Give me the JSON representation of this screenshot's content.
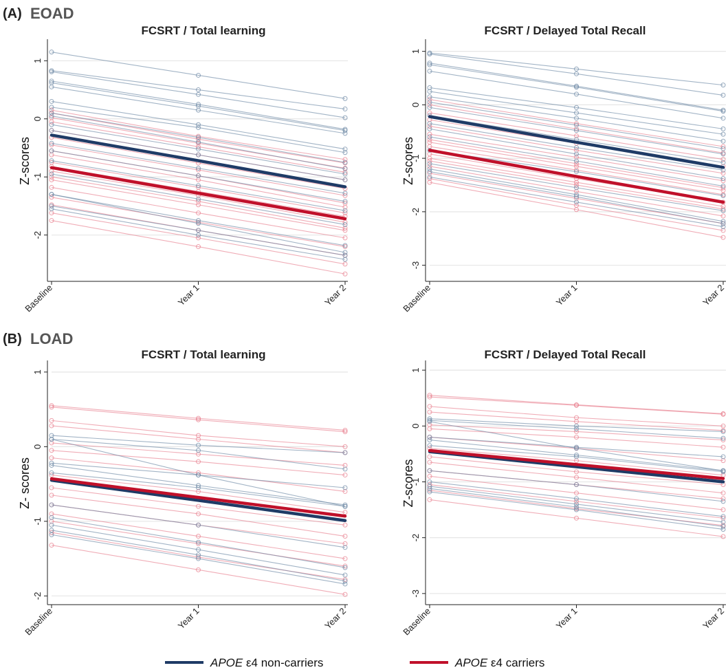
{
  "figure": {
    "sections": [
      {
        "letter": "(A)",
        "name": "EOAD"
      },
      {
        "letter": "(B)",
        "name": "LOAD"
      }
    ],
    "legend": [
      {
        "gene": "APOE",
        "rest": " ε4 non-carriers",
        "color": "#1f3b66"
      },
      {
        "gene": "APOE",
        "rest": " ε4 carriers",
        "color": "#c0102a"
      }
    ]
  },
  "colors": {
    "noncarrier_mean": "#1f3b66",
    "carrier_mean": "#c0102a",
    "noncarrier_individual": "#6f8aa6",
    "carrier_individual": "#e8808f",
    "grid": "#e6e6e6",
    "axis": "#222222"
  },
  "chart_data": [
    {
      "type": "line",
      "section": "(A) EOAD",
      "title": "FCSRT / Total learning",
      "ylabel": "Z-scores",
      "categories": [
        "Baseline",
        "Year 1",
        "Year 2"
      ],
      "ylim": [
        -2.75,
        1.3
      ],
      "yticks": [
        -2,
        -1,
        0,
        1
      ],
      "grid": true,
      "series": [
        {
          "name": "APOE ε4 non-carriers",
          "values": [
            -0.28,
            -0.72,
            -1.17
          ]
        },
        {
          "name": "APOE ε4 carriers",
          "values": [
            -0.84,
            -1.28,
            -1.72
          ]
        }
      ],
      "individual": {
        "noncarriers": [
          [
            1.15,
            0.75,
            0.35
          ],
          [
            0.83,
            0.5,
            0.17
          ],
          [
            0.81,
            0.42,
            0.02
          ],
          [
            0.65,
            0.25,
            -0.18
          ],
          [
            0.62,
            0.22,
            -0.2
          ],
          [
            0.55,
            0.15,
            -0.25
          ],
          [
            0.3,
            -0.1,
            -0.52
          ],
          [
            0.2,
            -0.15,
            -0.58
          ],
          [
            0.1,
            -0.32,
            -0.75
          ],
          [
            0.05,
            -0.4,
            -0.86
          ],
          [
            -0.1,
            -0.52,
            -0.95
          ],
          [
            -0.2,
            -0.62,
            -1.05
          ],
          [
            -0.42,
            -0.85,
            -1.28
          ],
          [
            -0.55,
            -0.98,
            -1.42
          ],
          [
            -0.72,
            -1.15,
            -1.58
          ],
          [
            -0.95,
            -1.38,
            -1.82
          ],
          [
            -1.3,
            -1.75,
            -2.18
          ],
          [
            -1.5,
            -1.92,
            -2.35
          ],
          [
            -1.55,
            -2.0,
            -2.42
          ],
          [
            -1.3,
            -1.8,
            -2.3
          ]
        ],
        "carriers": [
          [
            0.15,
            -0.3,
            -0.7
          ],
          [
            0.1,
            -0.35,
            -0.76
          ],
          [
            0.02,
            -0.42,
            -0.85
          ],
          [
            -0.05,
            -0.48,
            -0.92
          ],
          [
            -0.2,
            -0.62,
            -1.05
          ],
          [
            -0.32,
            -0.76,
            -1.2
          ],
          [
            -0.45,
            -0.88,
            -1.32
          ],
          [
            -0.55,
            -0.98,
            -1.45
          ],
          [
            -0.62,
            -1.05,
            -1.52
          ],
          [
            -0.75,
            -1.18,
            -1.62
          ],
          [
            -0.9,
            -1.32,
            -1.78
          ],
          [
            -1.05,
            -1.48,
            -1.92
          ],
          [
            -1.18,
            -1.62,
            -2.05
          ],
          [
            -1.35,
            -1.78,
            -2.2
          ],
          [
            -1.48,
            -1.92,
            -2.35
          ],
          [
            -1.62,
            -2.05,
            -2.5
          ],
          [
            -1.75,
            -2.2,
            -2.67
          ],
          [
            -0.82,
            -1.25,
            -1.68
          ],
          [
            -1.0,
            -1.42,
            -1.88
          ]
        ]
      }
    },
    {
      "type": "line",
      "section": "(A) EOAD",
      "title": "FCSRT / Delayed Total Recall",
      "ylabel": "Z-scores",
      "categories": [
        "Baseline",
        "Year 1",
        "Year 2"
      ],
      "ylim": [
        -3.25,
        1.15
      ],
      "yticks": [
        -3,
        -2,
        -1,
        0,
        1
      ],
      "grid": true,
      "series": [
        {
          "name": "APOE ε4 non-carriers",
          "values": [
            -0.22,
            -0.7,
            -1.17
          ]
        },
        {
          "name": "APOE ε4 carriers",
          "values": [
            -0.85,
            -1.34,
            -1.82
          ]
        }
      ],
      "individual": {
        "noncarriers": [
          [
            0.97,
            0.67,
            0.37
          ],
          [
            0.95,
            0.58,
            0.18
          ],
          [
            0.78,
            0.35,
            -0.1
          ],
          [
            0.75,
            0.33,
            -0.12
          ],
          [
            0.63,
            0.2,
            -0.25
          ],
          [
            0.32,
            -0.05,
            -0.45
          ],
          [
            0.25,
            -0.15,
            -0.55
          ],
          [
            0.15,
            -0.25,
            -0.68
          ],
          [
            0.05,
            -0.38,
            -0.82
          ],
          [
            -0.05,
            -0.48,
            -0.92
          ],
          [
            -0.2,
            -0.65,
            -1.08
          ],
          [
            -0.35,
            -0.8,
            -1.22
          ],
          [
            -0.45,
            -0.92,
            -1.38
          ],
          [
            -0.6,
            -1.05,
            -1.52
          ],
          [
            -0.85,
            -1.25,
            -1.7
          ],
          [
            -1.1,
            -1.55,
            -1.98
          ],
          [
            -1.2,
            -1.68,
            -2.18
          ],
          [
            -1.25,
            -1.72,
            -2.22
          ],
          [
            -1.35,
            -1.82,
            -2.28
          ]
        ],
        "carriers": [
          [
            0.1,
            -0.35,
            -0.78
          ],
          [
            0.0,
            -0.45,
            -0.9
          ],
          [
            -0.15,
            -0.58,
            -1.02
          ],
          [
            -0.28,
            -0.72,
            -1.15
          ],
          [
            -0.4,
            -0.85,
            -1.28
          ],
          [
            -0.55,
            -0.98,
            -1.42
          ],
          [
            -0.65,
            -1.1,
            -1.55
          ],
          [
            -0.78,
            -1.22,
            -1.68
          ],
          [
            -0.92,
            -1.38,
            -1.82
          ],
          [
            -1.05,
            -1.5,
            -1.95
          ],
          [
            -1.15,
            -1.62,
            -2.08
          ],
          [
            -1.28,
            -1.75,
            -2.22
          ],
          [
            -1.38,
            -1.88,
            -2.35
          ],
          [
            -1.45,
            -1.96,
            -2.48
          ],
          [
            -0.7,
            -1.15,
            -1.6
          ],
          [
            -1.0,
            -1.45,
            -1.9
          ]
        ]
      }
    },
    {
      "type": "line",
      "section": "(B) LOAD",
      "title": "FCSRT / Total learning",
      "ylabel": "Z- scores",
      "categories": [
        "Baseline",
        "Year 1",
        "Year 2"
      ],
      "ylim": [
        -2.08,
        1.1
      ],
      "yticks": [
        -2,
        -1,
        0,
        1
      ],
      "grid": true,
      "series": [
        {
          "name": "APOE ε4 non-carriers",
          "values": [
            -0.45,
            -0.72,
            -0.99
          ]
        },
        {
          "name": "APOE ε4 carriers",
          "values": [
            -0.43,
            -0.68,
            -0.93
          ]
        }
      ],
      "individual": {
        "noncarriers": [
          [
            0.15,
            0.02,
            -0.08
          ],
          [
            0.1,
            -0.05,
            -0.3
          ],
          [
            0.1,
            -0.38,
            -0.8
          ],
          [
            -0.22,
            -0.38,
            -0.55
          ],
          [
            -0.35,
            -0.55,
            -0.8
          ],
          [
            -0.78,
            -1.05,
            -1.35
          ],
          [
            -0.95,
            -1.28,
            -1.62
          ],
          [
            -1.05,
            -1.38,
            -1.72
          ],
          [
            -1.12,
            -1.45,
            -1.8
          ],
          [
            -1.18,
            -1.5,
            -1.84
          ],
          [
            -0.25,
            -0.52,
            -0.78
          ]
        ],
        "carriers": [
          [
            0.55,
            0.38,
            0.22
          ],
          [
            0.53,
            0.36,
            0.2
          ],
          [
            0.35,
            0.15,
            0.0
          ],
          [
            0.28,
            0.1,
            -0.08
          ],
          [
            0.05,
            -0.1,
            -0.25
          ],
          [
            -0.05,
            -0.2,
            -0.38
          ],
          [
            -0.15,
            -0.35,
            -0.6
          ],
          [
            -0.38,
            -0.6,
            -0.88
          ],
          [
            -0.55,
            -0.8,
            -1.05
          ],
          [
            -0.65,
            -0.9,
            -1.2
          ],
          [
            -0.78,
            -1.05,
            -1.3
          ],
          [
            -1.0,
            -1.3,
            -1.6
          ],
          [
            -1.15,
            -1.48,
            -1.78
          ],
          [
            -1.32,
            -1.65,
            -1.98
          ],
          [
            -0.9,
            -1.2,
            -1.5
          ]
        ]
      }
    },
    {
      "type": "line",
      "section": "(B) LOAD",
      "title": "FCSRT / Delayed Total Recall",
      "ylabel": "Z-scores",
      "categories": [
        "Baseline",
        "Year 1",
        "Year 2"
      ],
      "ylim": [
        -3.15,
        1.1
      ],
      "yticks": [
        -3,
        -2,
        -1,
        0,
        1
      ],
      "grid": true,
      "series": [
        {
          "name": "APOE ε4 non-carriers",
          "values": [
            -0.46,
            -0.73,
            -1.0
          ]
        },
        {
          "name": "APOE ε4 carriers",
          "values": [
            -0.44,
            -0.69,
            -0.94
          ]
        }
      ],
      "individual": {
        "noncarriers": [
          [
            0.13,
            0.0,
            -0.1
          ],
          [
            0.1,
            -0.05,
            -0.22
          ],
          [
            0.08,
            -0.4,
            -0.8
          ],
          [
            -0.2,
            -0.38,
            -0.55
          ],
          [
            -0.35,
            -0.55,
            -0.82
          ],
          [
            -0.8,
            -1.05,
            -1.35
          ],
          [
            -1.0,
            -1.3,
            -1.62
          ],
          [
            -1.08,
            -1.4,
            -1.72
          ],
          [
            -1.12,
            -1.45,
            -1.8
          ],
          [
            -1.18,
            -1.5,
            -1.85
          ],
          [
            -0.25,
            -0.52,
            -0.8
          ]
        ],
        "carriers": [
          [
            0.55,
            0.38,
            0.22
          ],
          [
            0.52,
            0.37,
            0.21
          ],
          [
            0.35,
            0.15,
            0.0
          ],
          [
            0.25,
            0.08,
            -0.08
          ],
          [
            0.02,
            -0.1,
            -0.25
          ],
          [
            -0.05,
            -0.2,
            -0.38
          ],
          [
            -0.2,
            -0.4,
            -0.62
          ],
          [
            -0.4,
            -0.62,
            -0.88
          ],
          [
            -0.55,
            -0.82,
            -1.05
          ],
          [
            -0.65,
            -0.92,
            -1.2
          ],
          [
            -0.8,
            -1.05,
            -1.3
          ],
          [
            -1.05,
            -1.35,
            -1.65
          ],
          [
            -1.15,
            -1.48,
            -1.78
          ],
          [
            -1.32,
            -1.65,
            -1.98
          ],
          [
            -0.9,
            -1.2,
            -1.5
          ]
        ]
      }
    }
  ]
}
